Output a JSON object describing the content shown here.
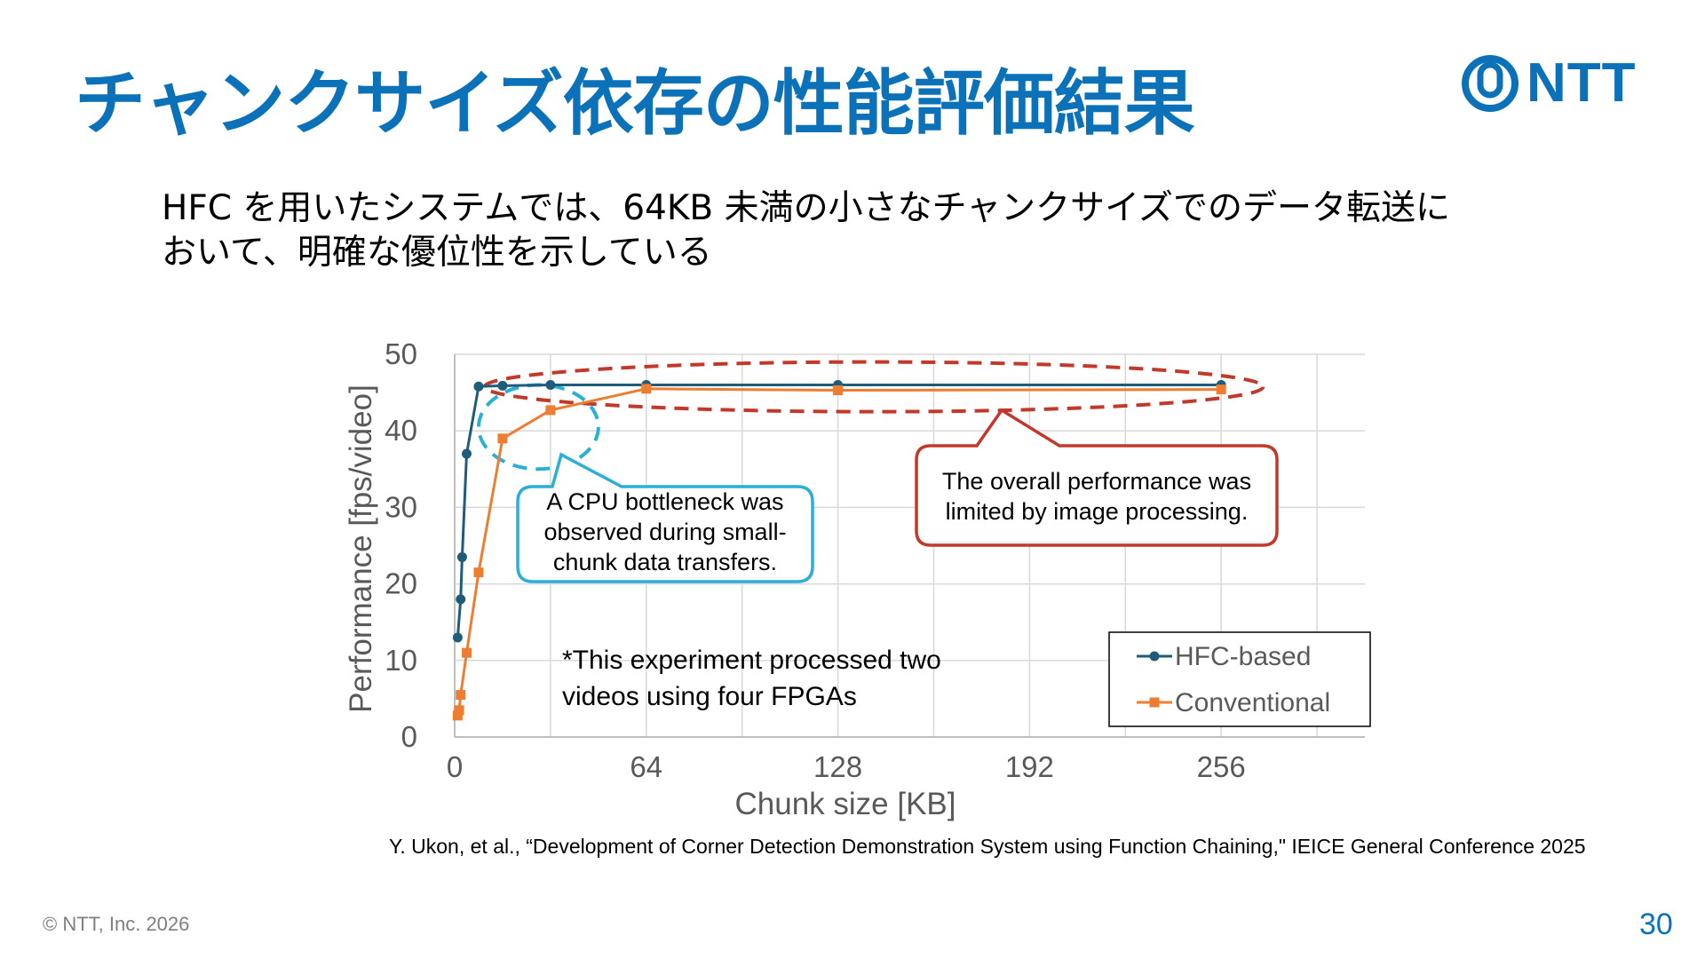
{
  "slide": {
    "title": "チャンクサイズ依存の性能評価結果",
    "logo_text": "NTT",
    "subtitle_line1": "HFC を用いたシステムでは、64KB 未満の小さなチャンクサイズでのデータ転送に",
    "subtitle_line2": "おいて、明確な優位性を示している",
    "citation": "Y. Ukon, et al., “Development of Corner Detection Demonstration System using Function Chaining,\" IEICE General Conference 2025",
    "footer_copyright": "© NTT, Inc.  2026",
    "page_number": "30"
  },
  "colors": {
    "brand": "#0b72b9",
    "hfc": "#1f5c7a",
    "conventional": "#ed7d31",
    "callout_cpu": "#2ab0d6",
    "callout_overall": "#c0392b",
    "grid": "#d9d9d9",
    "axis_text": "#595959"
  },
  "chart_data": {
    "type": "line",
    "xlabel": "Chunk size [KB]",
    "ylabel": "Performance [fps/video]",
    "xlim": [
      0,
      304
    ],
    "ylim": [
      0,
      50
    ],
    "x_ticks": [
      0,
      64,
      128,
      192,
      256
    ],
    "y_ticks": [
      0,
      10,
      20,
      30,
      40,
      50
    ],
    "x_grid_step": 32,
    "grid": true,
    "legend_position": "bottom-right",
    "series": [
      {
        "name": "HFC-based",
        "marker": "circle",
        "x": [
          1,
          2,
          2.5,
          4,
          8,
          16,
          32,
          64,
          128,
          256
        ],
        "y": [
          13,
          18,
          23.5,
          37,
          45.8,
          45.9,
          46,
          46,
          46,
          46
        ]
      },
      {
        "name": "Conventional",
        "marker": "square",
        "x": [
          1,
          1.5,
          2,
          4,
          8,
          16,
          32,
          64,
          128,
          256
        ],
        "y": [
          2.8,
          3.5,
          5.5,
          11,
          21.5,
          39,
          42.7,
          45.5,
          45.3,
          45.4
        ]
      }
    ],
    "annotations": {
      "cpu_callout": {
        "line1": "A CPU bottleneck was",
        "line2": "observed during small-",
        "line3": "chunk data transfers."
      },
      "overall_callout": {
        "line1": "The overall performance was",
        "line2": "limited by image processing."
      },
      "note_line1": "*This experiment processed two",
      "note_line2": "videos using four FPGAs",
      "highlight_small_chunk": {
        "x_range": [
          8,
          48
        ],
        "y_range": [
          35,
          46
        ]
      },
      "highlight_large_chunk": {
        "x_range": [
          10,
          270
        ],
        "y_range": [
          42.5,
          49
        ]
      }
    }
  }
}
